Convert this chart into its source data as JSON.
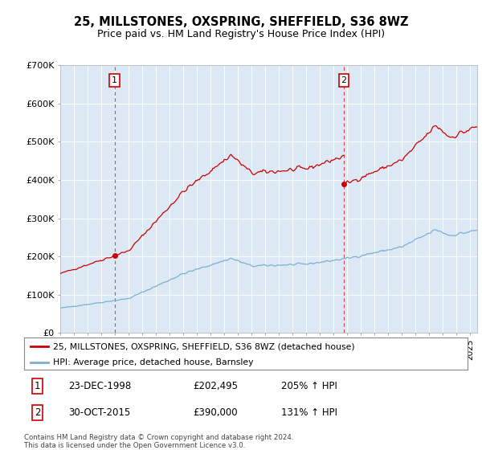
{
  "title": "25, MILLSTONES, OXSPRING, SHEFFIELD, S36 8WZ",
  "subtitle": "Price paid vs. HM Land Registry's House Price Index (HPI)",
  "legend_line1": "25, MILLSTONES, OXSPRING, SHEFFIELD, S36 8WZ (detached house)",
  "legend_line2": "HPI: Average price, detached house, Barnsley",
  "annotation1_date": "23-DEC-1998",
  "annotation1_price": "£202,495",
  "annotation1_pct": "205% ↑ HPI",
  "annotation2_date": "30-OCT-2015",
  "annotation2_price": "£390,000",
  "annotation2_pct": "131% ↑ HPI",
  "footer": "Contains HM Land Registry data © Crown copyright and database right 2024.\nThis data is licensed under the Open Government Licence v3.0.",
  "hpi_color": "#7bafd4",
  "price_color": "#cc0000",
  "background_color": "#dce9f5",
  "ylim": [
    0,
    700000
  ],
  "yticks": [
    0,
    100000,
    200000,
    300000,
    400000,
    500000,
    600000,
    700000
  ],
  "ytick_labels": [
    "£0",
    "£100K",
    "£200K",
    "£300K",
    "£400K",
    "£500K",
    "£600K",
    "£700K"
  ],
  "t1": 1998.97,
  "t2": 2015.75,
  "p1": 202495,
  "p2": 390000
}
